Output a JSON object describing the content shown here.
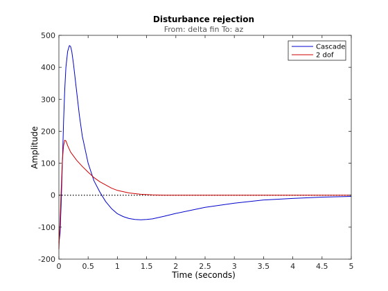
{
  "chart_data": {
    "type": "line",
    "title": "Disturbance rejection",
    "subtitle": "From: delta fin  To: az",
    "xlabel": "Time (seconds)",
    "ylabel": "Amplitude",
    "xlim": [
      0,
      5
    ],
    "ylim": [
      -200,
      500
    ],
    "xticks": [
      0,
      0.5,
      1,
      1.5,
      2,
      2.5,
      3,
      3.5,
      4,
      4.5,
      5
    ],
    "xtick_labels": [
      "0",
      "0.5",
      "1",
      "1.5",
      "2",
      "2.5",
      "3",
      "3.5",
      "4",
      "4.5",
      "5"
    ],
    "yticks": [
      -200,
      -100,
      0,
      100,
      200,
      300,
      400,
      500
    ],
    "ytick_labels": [
      "-200",
      "-100",
      "0",
      "100",
      "200",
      "300",
      "400",
      "500"
    ],
    "grid": false,
    "legend_position": "top-right",
    "zero_line": true,
    "series": [
      {
        "name": "Cascade",
        "color": "#0000cc",
        "x": [
          0,
          0.02,
          0.04,
          0.06,
          0.08,
          0.1,
          0.12,
          0.15,
          0.18,
          0.2,
          0.22,
          0.25,
          0.3,
          0.35,
          0.4,
          0.5,
          0.6,
          0.7,
          0.8,
          0.9,
          1.0,
          1.1,
          1.2,
          1.3,
          1.4,
          1.5,
          1.6,
          1.8,
          2.0,
          2.5,
          3.0,
          3.5,
          4.0,
          4.5,
          5.0
        ],
        "y": [
          -150,
          -120,
          -20,
          100,
          230,
          330,
          400,
          450,
          468,
          465,
          450,
          410,
          330,
          250,
          185,
          100,
          45,
          10,
          -20,
          -42,
          -58,
          -67,
          -73,
          -76,
          -77,
          -76,
          -74,
          -66,
          -57,
          -38,
          -25,
          -15,
          -10,
          -6,
          -4
        ]
      },
      {
        "name": "2 dof",
        "color": "#cc0000",
        "x": [
          0,
          0.02,
          0.04,
          0.06,
          0.08,
          0.1,
          0.12,
          0.15,
          0.2,
          0.3,
          0.4,
          0.5,
          0.6,
          0.7,
          0.8,
          0.9,
          1.0,
          1.2,
          1.4,
          1.6,
          1.8,
          2.0,
          2.5,
          3.0,
          3.5,
          4.0,
          4.5,
          5.0
        ],
        "y": [
          -170,
          -80,
          20,
          110,
          155,
          172,
          170,
          155,
          135,
          110,
          90,
          72,
          55,
          42,
          32,
          22,
          15,
          7,
          3,
          1,
          0,
          0,
          0,
          0,
          0,
          0,
          0,
          0
        ]
      }
    ]
  }
}
